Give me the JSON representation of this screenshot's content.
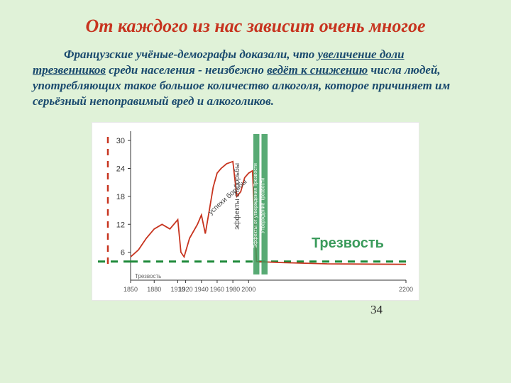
{
  "background_color": "#e0f2d8",
  "title": {
    "text": "От каждого из нас зависит очень многое",
    "color": "#c7341f",
    "fontsize": 26
  },
  "paragraph": {
    "pre": "Французские учёные-демографы доказали, что ",
    "underlined1": "увеличение доли трезвенников",
    "mid1": " среди населения - неизбежно ",
    "underlined2": "ведёт к снижению",
    "post": " числа людей, употребляющих такое большое количество алкоголя, которое причиняет им серьёзный непоправимый вред и алкоголиков.",
    "color": "#1a4a6e",
    "fontsize": 17
  },
  "chart": {
    "type": "line",
    "background_color": "#ffffff",
    "axis_color": "#333333",
    "grid_color": "#e0e0e0",
    "y_ticks": [
      6,
      12,
      18,
      24,
      30
    ],
    "y_tick_labels": [
      "6",
      "12",
      "18",
      "24",
      "30"
    ],
    "ylim": [
      0,
      32
    ],
    "x_ticks": [
      1850,
      1880,
      1910,
      1920,
      1940,
      1960,
      1980,
      2000,
      2200
    ],
    "x_tick_labels": [
      "1850",
      "1880",
      "1910",
      "1920",
      "1940",
      "1960",
      "1980",
      "2000",
      "2200"
    ],
    "line_color": "#c7341f",
    "line_width": 1.8,
    "series": [
      {
        "x": 1850,
        "y": 5
      },
      {
        "x": 1860,
        "y": 6.5
      },
      {
        "x": 1870,
        "y": 9
      },
      {
        "x": 1880,
        "y": 11
      },
      {
        "x": 1890,
        "y": 12
      },
      {
        "x": 1900,
        "y": 11
      },
      {
        "x": 1910,
        "y": 13
      },
      {
        "x": 1914,
        "y": 6
      },
      {
        "x": 1918,
        "y": 5
      },
      {
        "x": 1925,
        "y": 9
      },
      {
        "x": 1935,
        "y": 12
      },
      {
        "x": 1940,
        "y": 14
      },
      {
        "x": 1945,
        "y": 10
      },
      {
        "x": 1950,
        "y": 15
      },
      {
        "x": 1955,
        "y": 20
      },
      {
        "x": 1960,
        "y": 23
      },
      {
        "x": 1965,
        "y": 24
      },
      {
        "x": 1972,
        "y": 25
      },
      {
        "x": 1980,
        "y": 25.5
      },
      {
        "x": 1985,
        "y": 18
      },
      {
        "x": 1990,
        "y": 19
      },
      {
        "x": 1995,
        "y": 22
      },
      {
        "x": 2000,
        "y": 23
      },
      {
        "x": 2005,
        "y": 23.5
      },
      {
        "x": 2010,
        "y": 4
      },
      {
        "x": 2040,
        "y": 3.8
      },
      {
        "x": 2100,
        "y": 3.5
      },
      {
        "x": 2200,
        "y": 3.4
      }
    ],
    "green_dash_color": "#1f8a3a",
    "green_dash_y": 4,
    "annotations": {
      "trezvost_axis_label": "Трезвость",
      "uspehi": "успехи борьбы",
      "effekty": "эффекты от борьбы",
      "trezvost_big": "Трезвость",
      "green_band_texts": [
        "Утверждение Трезвости",
        "Эффекты от утверждения Трезвости"
      ],
      "green_band_color": "#3b9b5c"
    }
  },
  "page_number": "34"
}
